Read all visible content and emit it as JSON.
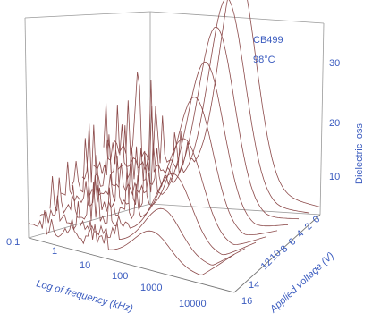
{
  "chart_data": {
    "type": "surface-3d",
    "annotations": [
      "CB499",
      "98°C"
    ],
    "zlabel": "Dielectric loss",
    "xlabel": "Log of frequency (kHz)",
    "ylabel": "Applied voltage (V)",
    "x_ticks": [
      "0.1",
      "1",
      "10",
      "100",
      "1000",
      "10000"
    ],
    "y_ticks": [
      "0",
      "2",
      "4",
      "6",
      "8",
      "10",
      "12",
      "14",
      "16"
    ],
    "z_ticks": [
      "10",
      "20",
      "30"
    ],
    "zlim": [
      0,
      35
    ],
    "voltages": [
      0,
      2,
      4,
      6,
      8,
      10,
      12,
      14,
      16
    ],
    "peak_log_frequency": 2.0,
    "peak_heights": [
      34,
      31,
      28,
      24,
      20,
      15,
      11,
      7,
      5
    ],
    "colors": {
      "curves": "#8c4a4a",
      "annotations": "#3a5bbf",
      "axis_lines": "#888888",
      "text": "#3a5bbf"
    }
  }
}
